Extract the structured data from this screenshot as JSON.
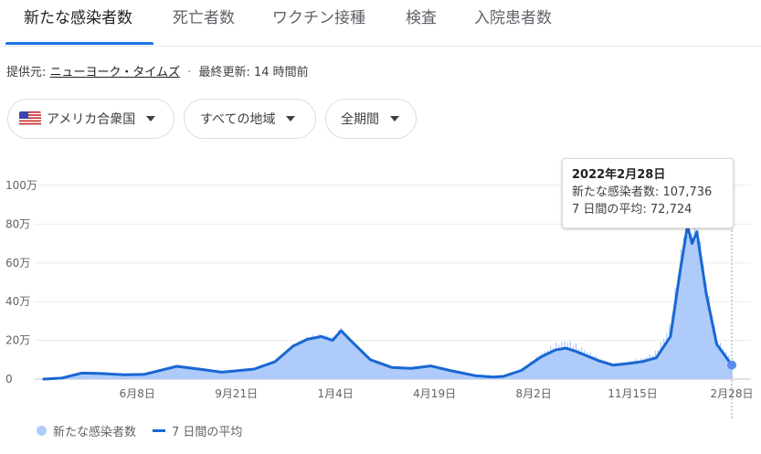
{
  "tabs": [
    {
      "label": "新たな感染者数",
      "active": true
    },
    {
      "label": "死亡者数",
      "active": false
    },
    {
      "label": "ワクチン接種",
      "active": false
    },
    {
      "label": "検査",
      "active": false
    },
    {
      "label": "入院患者数",
      "active": false
    }
  ],
  "source": {
    "prefix": "提供元:",
    "provider": "ニューヨーク・タイムズ",
    "separator": "·",
    "updated": "最終更新: 14 時間前"
  },
  "filters": {
    "country": "アメリカ合衆国",
    "region": "すべての地域",
    "period": "全期間"
  },
  "tooltip": {
    "date": "2022年2月28日",
    "cases_line": "新たな感染者数: 107,736",
    "avg_line": "7 日間の平均: 72,724"
  },
  "legend": {
    "cases": "新たな感染者数",
    "average": "7 日間の平均"
  },
  "colors": {
    "accent": "#1a73e8",
    "bars": "#aecbfa",
    "average_line": "#1967d2"
  },
  "chart_data": {
    "type": "bar",
    "y_ticks": [
      "0",
      "20万",
      "40万",
      "60万",
      "80万",
      "100万"
    ],
    "y_tick_values": [
      0,
      200000,
      400000,
      600000,
      800000,
      1000000
    ],
    "ylim": [
      0,
      1000000
    ],
    "x_tick_labels": [
      "6月8日",
      "9月21日",
      "1月4日",
      "4月19日",
      "8月2日",
      "11月15日",
      "2月28日"
    ],
    "x_range": [
      "2020-03-01",
      "2022-02-28"
    ],
    "x_ticks": [
      "2020-06-08",
      "2020-09-21",
      "2021-01-04",
      "2021-04-19",
      "2021-08-02",
      "2021-11-15",
      "2022-02-28"
    ],
    "grid": true,
    "legend_position": "bottom-left",
    "series": [
      {
        "name": "7 日間の平均",
        "kind": "line",
        "points": [
          [
            "2020-03-01",
            0
          ],
          [
            "2020-03-20",
            5000
          ],
          [
            "2020-04-10",
            31000
          ],
          [
            "2020-05-01",
            29000
          ],
          [
            "2020-05-25",
            22000
          ],
          [
            "2020-06-15",
            24000
          ],
          [
            "2020-07-20",
            66000
          ],
          [
            "2020-08-15",
            50000
          ],
          [
            "2020-09-05",
            36000
          ],
          [
            "2020-09-15",
            40000
          ],
          [
            "2020-10-10",
            52000
          ],
          [
            "2020-11-01",
            90000
          ],
          [
            "2020-11-20",
            170000
          ],
          [
            "2020-12-05",
            205000
          ],
          [
            "2020-12-20",
            220000
          ],
          [
            "2021-01-01",
            200000
          ],
          [
            "2021-01-10",
            250000
          ],
          [
            "2021-01-20",
            200000
          ],
          [
            "2021-02-10",
            100000
          ],
          [
            "2021-03-05",
            60000
          ],
          [
            "2021-03-25",
            55000
          ],
          [
            "2021-04-15",
            68000
          ],
          [
            "2021-05-05",
            45000
          ],
          [
            "2021-06-01",
            18000
          ],
          [
            "2021-06-20",
            11000
          ],
          [
            "2021-07-01",
            14000
          ],
          [
            "2021-07-20",
            45000
          ],
          [
            "2021-08-10",
            115000
          ],
          [
            "2021-08-25",
            150000
          ],
          [
            "2021-09-05",
            160000
          ],
          [
            "2021-09-15",
            145000
          ],
          [
            "2021-10-10",
            95000
          ],
          [
            "2021-10-25",
            72000
          ],
          [
            "2021-11-10",
            80000
          ],
          [
            "2021-11-25",
            90000
          ],
          [
            "2021-12-10",
            110000
          ],
          [
            "2021-12-25",
            220000
          ],
          [
            "2022-01-05",
            580000
          ],
          [
            "2022-01-12",
            790000
          ],
          [
            "2022-01-17",
            700000
          ],
          [
            "2022-01-22",
            760000
          ],
          [
            "2022-02-01",
            440000
          ],
          [
            "2022-02-12",
            180000
          ],
          [
            "2022-02-28",
            72724
          ]
        ]
      },
      {
        "name": "新たな感染者数",
        "kind": "bar",
        "points": [
          [
            "2020-03-01",
            0
          ],
          [
            "2020-03-20",
            8000
          ],
          [
            "2020-04-10",
            34000
          ],
          [
            "2020-05-01",
            30000
          ],
          [
            "2020-05-25",
            21000
          ],
          [
            "2020-06-15",
            26000
          ],
          [
            "2020-07-20",
            70000
          ],
          [
            "2020-08-15",
            52000
          ],
          [
            "2020-09-05",
            30000
          ],
          [
            "2020-09-15",
            45000
          ],
          [
            "2020-10-10",
            55000
          ],
          [
            "2020-11-01",
            100000
          ],
          [
            "2020-11-20",
            190000
          ],
          [
            "2020-12-05",
            230000
          ],
          [
            "2020-12-20",
            250000
          ],
          [
            "2021-01-01",
            230000
          ],
          [
            "2021-01-10",
            290000
          ],
          [
            "2021-01-20",
            210000
          ],
          [
            "2021-02-10",
            110000
          ],
          [
            "2021-03-05",
            65000
          ],
          [
            "2021-03-25",
            62000
          ],
          [
            "2021-04-15",
            75000
          ],
          [
            "2021-05-05",
            48000
          ],
          [
            "2021-06-01",
            22000
          ],
          [
            "2021-06-20",
            8000
          ],
          [
            "2021-07-01",
            12000
          ],
          [
            "2021-07-20",
            55000
          ],
          [
            "2021-08-10",
            140000
          ],
          [
            "2021-08-25",
            190000
          ],
          [
            "2021-09-05",
            210000
          ],
          [
            "2021-09-15",
            190000
          ],
          [
            "2021-10-10",
            115000
          ],
          [
            "2021-10-25",
            85000
          ],
          [
            "2021-11-10",
            95000
          ],
          [
            "2021-11-25",
            110000
          ],
          [
            "2021-12-10",
            150000
          ],
          [
            "2021-12-25",
            300000
          ],
          [
            "2022-01-05",
            680000
          ],
          [
            "2022-01-12",
            880000
          ],
          [
            "2022-01-17",
            800000
          ],
          [
            "2022-01-22",
            850000
          ],
          [
            "2022-02-01",
            520000
          ],
          [
            "2022-02-12",
            220000
          ],
          [
            "2022-02-28",
            107736
          ]
        ]
      }
    ]
  }
}
